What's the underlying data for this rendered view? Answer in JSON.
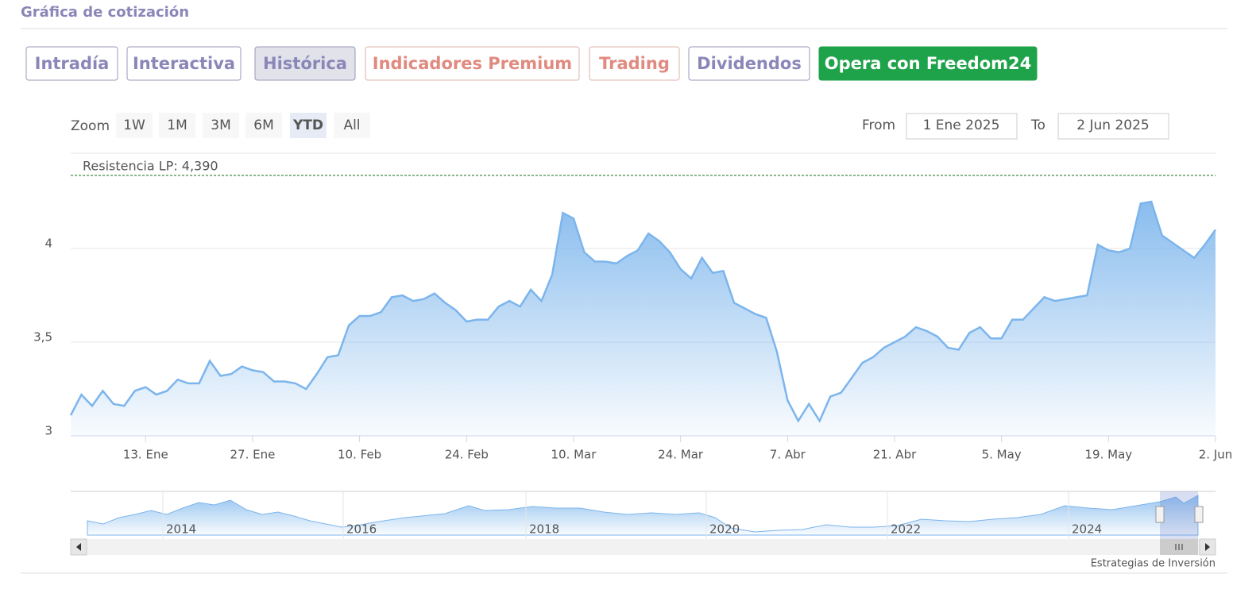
{
  "header": {
    "title": "Gráfica de cotización"
  },
  "tabs": [
    "Intradía",
    "Interactiva",
    "Histórica",
    "Indicadores Premium",
    "Trading",
    "Dividendos",
    "Opera con Freedom24"
  ],
  "range_selector": {
    "label": "Zoom",
    "buttons": [
      "1W",
      "1M",
      "3M",
      "6M",
      "YTD",
      "All"
    ],
    "from_label": "From",
    "from": "1 Ene 2025",
    "to_label": "To",
    "to": "2 Jun 2025"
  },
  "chart_data": {
    "type": "area",
    "x": [
      "2025-01-02",
      "2025-01-03",
      "2025-01-06",
      "2025-01-07",
      "2025-01-08",
      "2025-01-09",
      "2025-01-10",
      "2025-01-13",
      "2025-01-14",
      "2025-01-15",
      "2025-01-16",
      "2025-01-17",
      "2025-01-20",
      "2025-01-21",
      "2025-01-22",
      "2025-01-23",
      "2025-01-24",
      "2025-01-27",
      "2025-01-28",
      "2025-01-29",
      "2025-01-30",
      "2025-01-31",
      "2025-02-03",
      "2025-02-04",
      "2025-02-05",
      "2025-02-06",
      "2025-02-07",
      "2025-02-10",
      "2025-02-11",
      "2025-02-12",
      "2025-02-13",
      "2025-02-14",
      "2025-02-17",
      "2025-02-18",
      "2025-02-19",
      "2025-02-20",
      "2025-02-21",
      "2025-02-24",
      "2025-02-25",
      "2025-02-26",
      "2025-02-27",
      "2025-02-28",
      "2025-03-03",
      "2025-03-04",
      "2025-03-05",
      "2025-03-06",
      "2025-03-07",
      "2025-03-10",
      "2025-03-11",
      "2025-03-12",
      "2025-03-13",
      "2025-03-14",
      "2025-03-17",
      "2025-03-18",
      "2025-03-19",
      "2025-03-20",
      "2025-03-21",
      "2025-03-24",
      "2025-03-25",
      "2025-03-26",
      "2025-03-27",
      "2025-03-28",
      "2025-03-31",
      "2025-04-01",
      "2025-04-02",
      "2025-04-03",
      "2025-04-04",
      "2025-04-07",
      "2025-04-08",
      "2025-04-09",
      "2025-04-10",
      "2025-04-11",
      "2025-04-14",
      "2025-04-15",
      "2025-04-16",
      "2025-04-17",
      "2025-04-18",
      "2025-04-21",
      "2025-04-22",
      "2025-04-23",
      "2025-04-24",
      "2025-04-25",
      "2025-04-28",
      "2025-04-29",
      "2025-04-30",
      "2025-05-01",
      "2025-05-02",
      "2025-05-05",
      "2025-05-06",
      "2025-05-07",
      "2025-05-08",
      "2025-05-09",
      "2025-05-12",
      "2025-05-13",
      "2025-05-14",
      "2025-05-15",
      "2025-05-16",
      "2025-05-19",
      "2025-05-20",
      "2025-05-21",
      "2025-05-22",
      "2025-05-23",
      "2025-05-26",
      "2025-05-27",
      "2025-05-28",
      "2025-05-29",
      "2025-05-30",
      "2025-06-02"
    ],
    "values": [
      3.11,
      3.22,
      3.16,
      3.24,
      3.17,
      3.16,
      3.24,
      3.26,
      3.22,
      3.24,
      3.3,
      3.28,
      3.28,
      3.4,
      3.32,
      3.33,
      3.37,
      3.35,
      3.34,
      3.29,
      3.29,
      3.28,
      3.25,
      3.33,
      3.42,
      3.43,
      3.59,
      3.64,
      3.64,
      3.66,
      3.74,
      3.75,
      3.72,
      3.73,
      3.76,
      3.71,
      3.67,
      3.61,
      3.62,
      3.62,
      3.69,
      3.72,
      3.69,
      3.78,
      3.72,
      3.86,
      4.19,
      4.16,
      3.98,
      3.93,
      3.93,
      3.92,
      3.96,
      3.99,
      4.08,
      4.04,
      3.98,
      3.89,
      3.84,
      3.95,
      3.87,
      3.88,
      3.71,
      3.68,
      3.65,
      3.63,
      3.45,
      3.19,
      3.08,
      3.17,
      3.08,
      3.21,
      3.23,
      3.31,
      3.39,
      3.42,
      3.47,
      3.5,
      3.53,
      3.58,
      3.56,
      3.53,
      3.47,
      3.46,
      3.55,
      3.58,
      3.52,
      3.52,
      3.62,
      3.62,
      3.68,
      3.74,
      3.72,
      3.73,
      3.74,
      3.75,
      4.02,
      3.99,
      3.98,
      4.0,
      4.24,
      4.25,
      4.07,
      4.03,
      3.99,
      3.95,
      4.02,
      4.1
    ],
    "color": "#7cb5ec",
    "ylim": [
      3,
      4.5
    ],
    "yticks": [
      3,
      {
        "value": 3.5,
        "label": "3,5"
      },
      4
    ],
    "xticks": [
      {
        "value": "2025-01-13",
        "label": "13. Ene"
      },
      {
        "value": "2025-01-27",
        "label": "27. Ene"
      },
      {
        "value": "2025-02-10",
        "label": "10. Feb"
      },
      {
        "value": "2025-02-24",
        "label": "24. Feb"
      },
      {
        "value": "2025-03-10",
        "label": "10. Mar"
      },
      {
        "value": "2025-03-24",
        "label": "24. Mar"
      },
      {
        "value": "2025-04-07",
        "label": "7. Abr"
      },
      {
        "value": "2025-04-21",
        "label": "21. Abr"
      },
      {
        "value": "2025-05-05",
        "label": "5. May"
      },
      {
        "value": "2025-05-19",
        "label": "19. May"
      },
      {
        "value": "2025-06-02",
        "label": "2. Jun"
      }
    ],
    "grid": true,
    "plot_lines": [
      {
        "label": "Resistencia LP: 4,390",
        "value": 4.39,
        "color": "#2e7d32"
      }
    ]
  },
  "navigator": {
    "labels": [
      "2014",
      "2016",
      "2018",
      "2020",
      "2022",
      "2024"
    ]
  },
  "credits": "Estrategias de Inversión"
}
